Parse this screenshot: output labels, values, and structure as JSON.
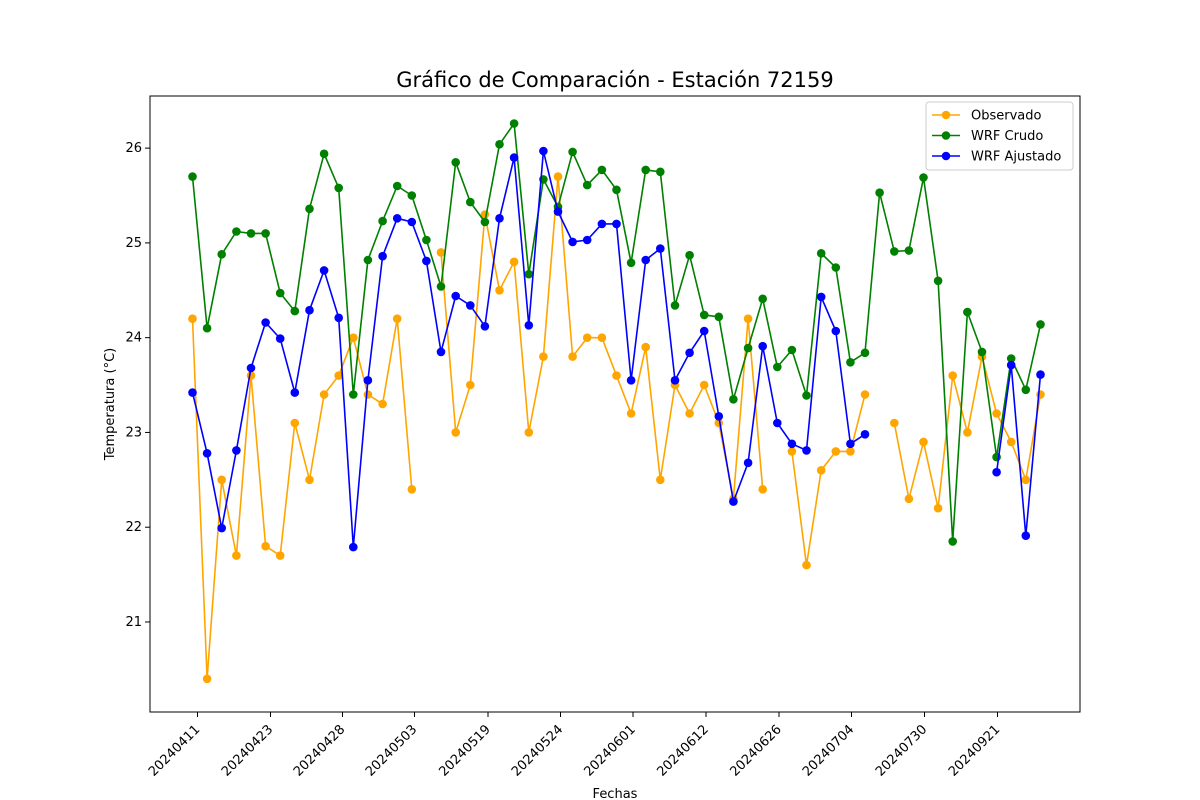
{
  "chart_data": {
    "type": "line",
    "title": "Gráfico de Comparación - Estación 72159",
    "xlabel": "Fechas",
    "ylabel": "Temperatura (°C)",
    "ylim": [
      20.05,
      26.55
    ],
    "yticks": [
      21,
      22,
      23,
      24,
      25,
      26
    ],
    "xtick_labels": [
      "20240411",
      "20240423",
      "20240428",
      "20240503",
      "20240519",
      "20240524",
      "20240601",
      "20240612",
      "20240626",
      "20240704",
      "20240730",
      "20240921"
    ],
    "grid": false,
    "legend_position": "top-right",
    "series": [
      {
        "name": "Observado",
        "color": "#ffa500",
        "values": [
          24.2,
          20.4,
          22.5,
          21.7,
          23.6,
          21.8,
          21.7,
          23.1,
          22.5,
          23.4,
          23.6,
          24.0,
          23.4,
          23.3,
          24.2,
          22.4,
          null,
          24.9,
          23.0,
          23.5,
          25.3,
          24.5,
          24.8,
          23.0,
          23.8,
          25.7,
          23.8,
          24.0,
          24.0,
          23.6,
          23.2,
          23.9,
          22.5,
          23.5,
          23.2,
          23.5,
          23.1,
          22.3,
          24.2,
          22.4,
          null,
          22.8,
          21.6,
          22.6,
          22.8,
          22.8,
          23.4,
          null,
          23.1,
          22.3,
          22.9,
          22.2,
          23.6,
          23.0,
          23.8,
          23.2,
          22.9,
          22.5,
          23.4
        ]
      },
      {
        "name": "WRF Crudo",
        "color": "#008000",
        "values": [
          25.7,
          24.1,
          24.88,
          25.12,
          25.1,
          25.1,
          24.47,
          24.28,
          25.36,
          25.94,
          25.58,
          23.4,
          24.82,
          25.23,
          25.6,
          25.5,
          25.03,
          24.54,
          25.85,
          25.43,
          25.22,
          26.04,
          26.26,
          24.67,
          25.67,
          25.38,
          25.96,
          25.61,
          25.77,
          25.56,
          24.79,
          25.77,
          25.75,
          24.34,
          24.87,
          24.24,
          24.22,
          23.35,
          23.89,
          24.41,
          23.69,
          23.87,
          23.39,
          24.89,
          24.74,
          23.74,
          23.84,
          25.53,
          24.91,
          24.92,
          25.69,
          24.6,
          21.85,
          24.27,
          23.85,
          22.74,
          23.78,
          23.45,
          24.14
        ]
      },
      {
        "name": "WRF Ajustado",
        "color": "#0000ff",
        "values": [
          23.42,
          22.78,
          21.99,
          22.81,
          23.68,
          24.16,
          23.99,
          23.42,
          24.29,
          24.71,
          24.21,
          21.79,
          23.55,
          24.86,
          25.26,
          25.22,
          24.81,
          23.85,
          24.44,
          24.34,
          24.12,
          25.26,
          25.9,
          24.13,
          25.97,
          25.33,
          25.01,
          25.03,
          25.2,
          25.2,
          23.55,
          24.82,
          24.94,
          23.55,
          23.84,
          24.07,
          23.17,
          22.27,
          22.68,
          23.91,
          23.1,
          22.88,
          22.81,
          24.43,
          24.07,
          22.88,
          22.98,
          null,
          null,
          null,
          null,
          null,
          null,
          null,
          null,
          22.58,
          23.71,
          21.91,
          23.61
        ]
      }
    ]
  }
}
